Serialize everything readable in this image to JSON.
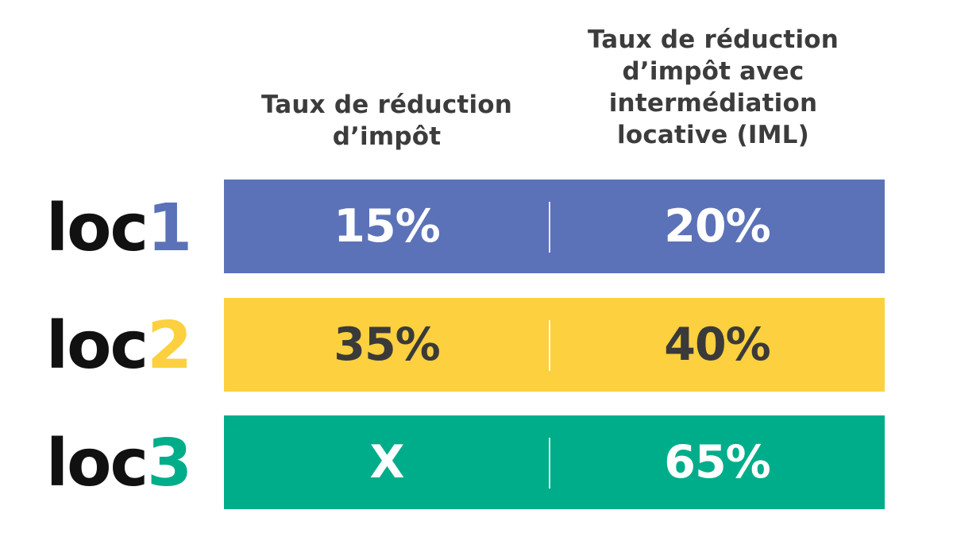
{
  "headers": {
    "col1": "Taux de réduction\nd’impôt",
    "col2": "Taux de réduction\nd’impôt avec\nintermédiation\nlocative (IML)"
  },
  "rows": [
    {
      "label_prefix": "loc",
      "label_number": "1",
      "rate": "15%",
      "rate_iml": "20%",
      "band_color": "#5b72b8",
      "number_color": "#5b72b8",
      "text_color": "#ffffff"
    },
    {
      "label_prefix": "loc",
      "label_number": "2",
      "rate": "35%",
      "rate_iml": "40%",
      "band_color": "#fcd03f",
      "number_color": "#fcd03f",
      "text_color": "#3a3a3a"
    },
    {
      "label_prefix": "loc",
      "label_number": "3",
      "rate": "X",
      "rate_iml": "65%",
      "band_color": "#00ad8a",
      "number_color": "#00ad8a",
      "text_color": "#ffffff"
    }
  ],
  "divider_color": "#ffffff"
}
